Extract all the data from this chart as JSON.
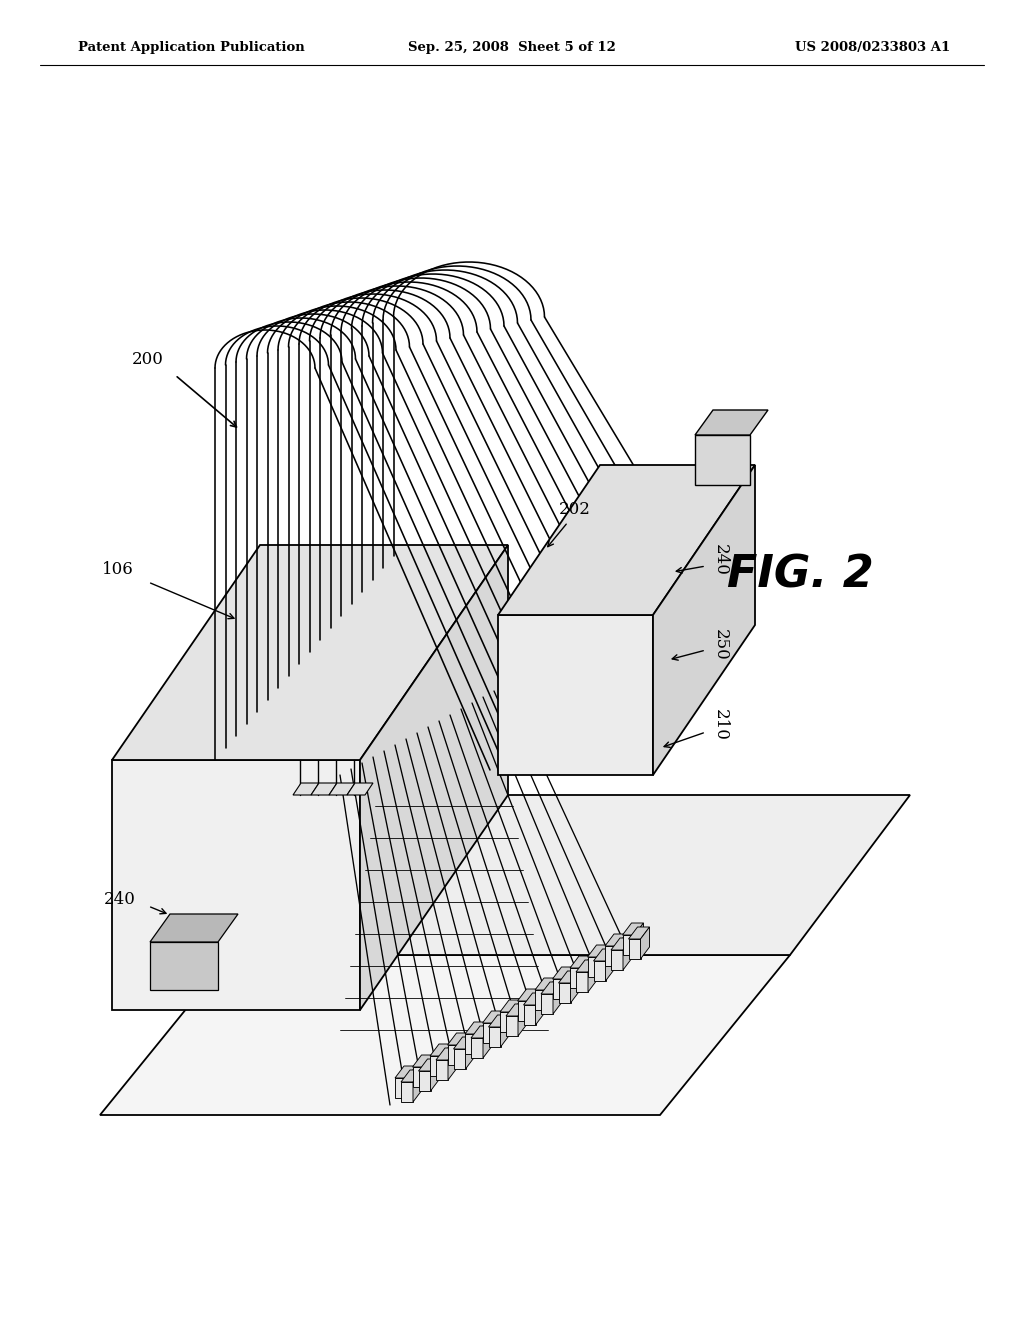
{
  "bg_color": "#ffffff",
  "lc": "#000000",
  "header_left": "Patent Application Publication",
  "header_center": "Sep. 25, 2008  Sheet 5 of 12",
  "header_right": "US 2008/0233803 A1",
  "fig_label": "FIG. 2",
  "n_ribbon": 18,
  "n_fan": 16,
  "n_pin_rows": 14
}
